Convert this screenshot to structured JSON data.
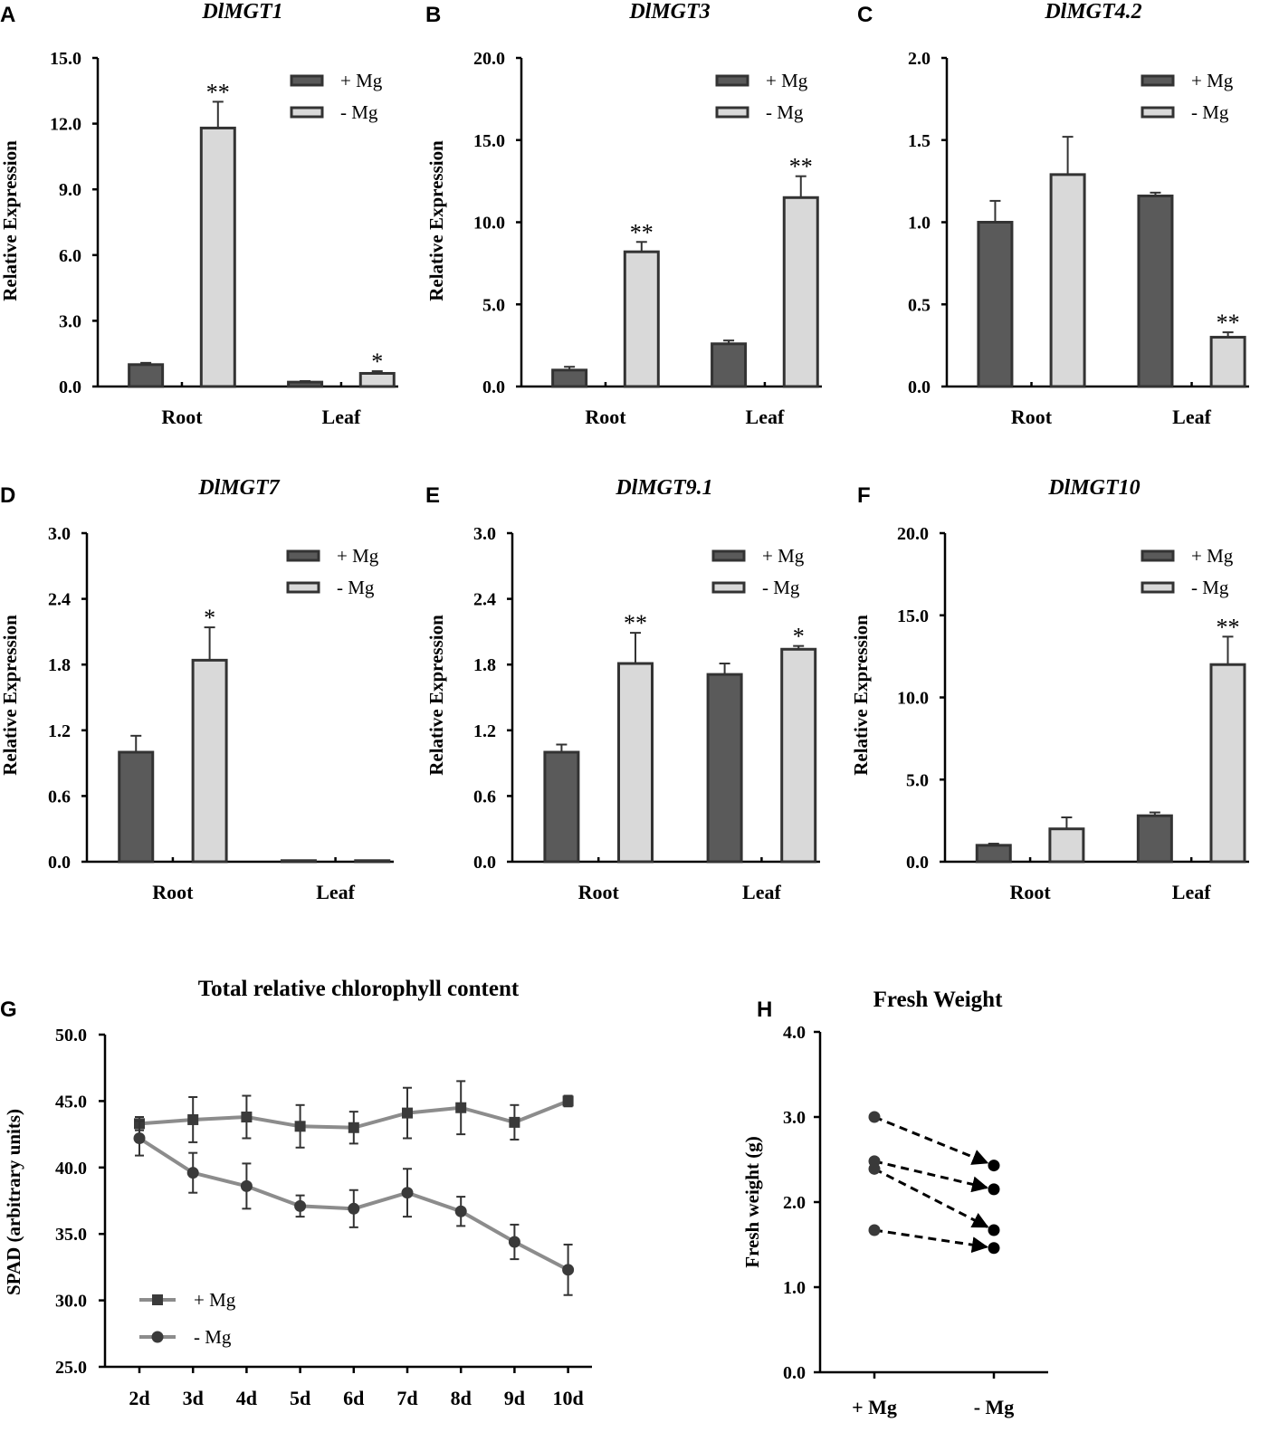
{
  "colors": {
    "plus_mg": "#5a5a5a",
    "minus_mg": "#d9d9d9",
    "line": "#8c8c8c",
    "marker": "#3a3a3a",
    "arrow": "#000000"
  },
  "chart_data": [
    {
      "panel": "A",
      "type": "bar",
      "title": "DlMGT1",
      "ylabel": "Relative Expression",
      "ylim": [
        0,
        15
      ],
      "yticks": [
        "0.0",
        "3.0",
        "6.0",
        "9.0",
        "12.0",
        "15.0"
      ],
      "categories": [
        "Root",
        "Leaf"
      ],
      "legend": [
        "+ Mg",
        "- Mg"
      ],
      "series": [
        {
          "name": "+ Mg",
          "values": [
            1.0,
            0.2
          ],
          "errors": [
            0.08,
            0.05
          ],
          "sig": [
            "",
            ""
          ]
        },
        {
          "name": "- Mg",
          "values": [
            11.8,
            0.6
          ],
          "errors": [
            1.2,
            0.1
          ],
          "sig": [
            "**",
            "*"
          ]
        }
      ]
    },
    {
      "panel": "B",
      "type": "bar",
      "title": "DlMGT3",
      "ylabel": "Relative Expression",
      "ylim": [
        0,
        20
      ],
      "yticks": [
        "0.0",
        "5.0",
        "10.0",
        "15.0",
        "20.0"
      ],
      "categories": [
        "Root",
        "Leaf"
      ],
      "legend": [
        "+ Mg",
        "- Mg"
      ],
      "series": [
        {
          "name": "+ Mg",
          "values": [
            1.0,
            2.6
          ],
          "errors": [
            0.2,
            0.2
          ],
          "sig": [
            "",
            ""
          ]
        },
        {
          "name": "- Mg",
          "values": [
            8.2,
            11.5
          ],
          "errors": [
            0.6,
            1.3
          ],
          "sig": [
            "**",
            "**"
          ]
        }
      ]
    },
    {
      "panel": "C",
      "type": "bar",
      "title": "DlMGT4.2",
      "ylabel": "",
      "ylim": [
        0,
        2
      ],
      "yticks": [
        "0.0",
        "0.5",
        "1.0",
        "1.5",
        "2.0"
      ],
      "categories": [
        "Root",
        "Leaf"
      ],
      "legend": [
        "+ Mg",
        "- Mg"
      ],
      "series": [
        {
          "name": "+ Mg",
          "values": [
            1.0,
            1.16
          ],
          "errors": [
            0.13,
            0.02
          ],
          "sig": [
            "",
            ""
          ]
        },
        {
          "name": "- Mg",
          "values": [
            1.29,
            0.3
          ],
          "errors": [
            0.23,
            0.03
          ],
          "sig": [
            "",
            "**"
          ]
        }
      ]
    },
    {
      "panel": "D",
      "type": "bar",
      "title": "DlMGT7",
      "ylabel": "Relative Expression",
      "ylim": [
        0,
        3
      ],
      "yticks": [
        "0.0",
        "0.6",
        "1.2",
        "1.8",
        "2.4",
        "3.0"
      ],
      "categories": [
        "Root",
        "Leaf"
      ],
      "legend": [
        "+ Mg",
        "- Mg"
      ],
      "series": [
        {
          "name": "+ Mg",
          "values": [
            1.0,
            0.01
          ],
          "errors": [
            0.15,
            0.0
          ],
          "sig": [
            "",
            ""
          ]
        },
        {
          "name": "- Mg",
          "values": [
            1.84,
            0.01
          ],
          "errors": [
            0.3,
            0.0
          ],
          "sig": [
            "*",
            ""
          ]
        }
      ]
    },
    {
      "panel": "E",
      "type": "bar",
      "title": "DlMGT9.1",
      "ylabel": "Relative Expression",
      "ylim": [
        0,
        3
      ],
      "yticks": [
        "0.0",
        "0.6",
        "1.2",
        "1.8",
        "2.4",
        "3.0"
      ],
      "categories": [
        "Root",
        "Leaf"
      ],
      "legend": [
        "+ Mg",
        "- Mg"
      ],
      "series": [
        {
          "name": "+ Mg",
          "values": [
            1.0,
            1.71
          ],
          "errors": [
            0.07,
            0.1
          ],
          "sig": [
            "",
            ""
          ]
        },
        {
          "name": "- Mg",
          "values": [
            1.81,
            1.94
          ],
          "errors": [
            0.28,
            0.03
          ],
          "sig": [
            "**",
            "*"
          ]
        }
      ]
    },
    {
      "panel": "F",
      "type": "bar",
      "title": "DlMGT10",
      "ylabel": "Relative Expression",
      "ylim": [
        0,
        20
      ],
      "yticks": [
        "0.0",
        "5.0",
        "10.0",
        "15.0",
        "20.0"
      ],
      "categories": [
        "Root",
        "Leaf"
      ],
      "legend": [
        "+ Mg",
        "- Mg"
      ],
      "series": [
        {
          "name": "+ Mg",
          "values": [
            1.0,
            2.8
          ],
          "errors": [
            0.1,
            0.2
          ],
          "sig": [
            "",
            ""
          ]
        },
        {
          "name": "- Mg",
          "values": [
            2.0,
            12.0
          ],
          "errors": [
            0.7,
            1.7
          ],
          "sig": [
            "",
            "**"
          ]
        }
      ]
    },
    {
      "panel": "G",
      "type": "line",
      "title": "Total relative chlorophyll content",
      "ylabel": "SPAD (arbitrary units)",
      "ylim": [
        25,
        50
      ],
      "yticks": [
        "25.0",
        "30.0",
        "35.0",
        "40.0",
        "45.0",
        "50.0"
      ],
      "x": [
        "2d",
        "3d",
        "4d",
        "5d",
        "6d",
        "7d",
        "8d",
        "9d",
        "10d"
      ],
      "legend": [
        "+ Mg",
        "- Mg"
      ],
      "series": [
        {
          "name": "+ Mg",
          "marker": "square",
          "values": [
            43.3,
            43.6,
            43.8,
            43.1,
            43.0,
            44.1,
            44.5,
            43.4,
            45.0
          ],
          "errors": [
            0.5,
            1.7,
            1.6,
            1.6,
            1.2,
            1.9,
            2.0,
            1.3,
            0.4
          ]
        },
        {
          "name": "- Mg",
          "marker": "circle",
          "values": [
            42.2,
            39.6,
            38.6,
            37.1,
            36.9,
            38.1,
            36.7,
            34.4,
            32.3
          ],
          "errors": [
            1.3,
            1.5,
            1.7,
            0.8,
            1.4,
            1.8,
            1.1,
            1.3,
            1.9
          ]
        }
      ]
    },
    {
      "panel": "H",
      "type": "scatter",
      "title": "Fresh Weight",
      "ylabel": "Fresh weight (g)",
      "ylim": [
        0,
        4
      ],
      "yticks": [
        "0.0",
        "1.0",
        "2.0",
        "3.0",
        "4.0"
      ],
      "categories": [
        "+ Mg",
        "- Mg"
      ],
      "pairs": [
        [
          3.0,
          2.43
        ],
        [
          2.48,
          2.15
        ],
        [
          2.39,
          1.67
        ],
        [
          1.67,
          1.46
        ]
      ]
    }
  ]
}
